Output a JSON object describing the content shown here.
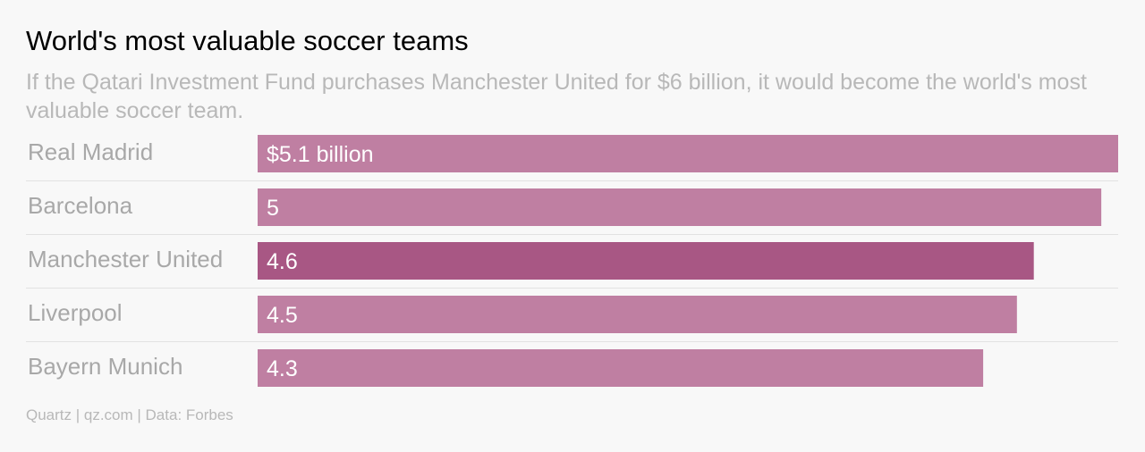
{
  "title": "World's most valuable soccer teams",
  "subtitle": "If the Qatari Investment Fund purchases Manchester United for $6 billion, it would become the world's most valuable soccer team.",
  "source": "Quartz | qz.com | Data: Forbes",
  "colors": {
    "bar": "#bf7fa2",
    "highlight": "#a85784",
    "category_label": "#a8a8a8",
    "value_label": "#ffffff",
    "separator": "#e2e2e2"
  },
  "chart_data": {
    "type": "bar",
    "orientation": "horizontal",
    "categories": [
      "Real Madrid",
      "Barcelona",
      "Manchester United",
      "Liverpool",
      "Bayern Munich"
    ],
    "values": [
      5.1,
      5.0,
      4.6,
      4.5,
      4.3
    ],
    "value_labels": [
      "$5.1 billion",
      "5",
      "4.6",
      "4.5",
      "4.3"
    ],
    "highlight_category": "Manchester United",
    "xlim": [
      0,
      5.1
    ],
    "grid": false,
    "legend": "none"
  }
}
